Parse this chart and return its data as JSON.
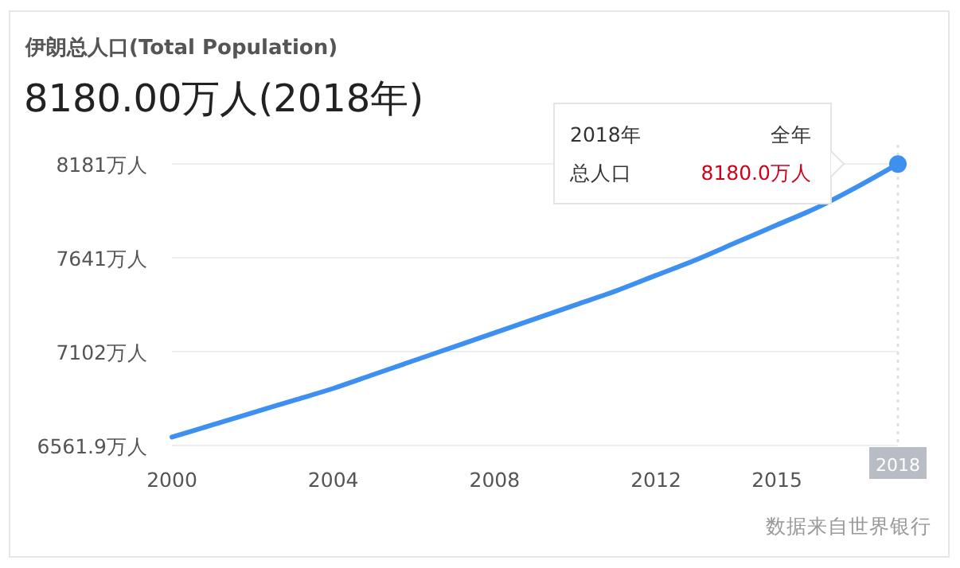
{
  "chart_data": {
    "type": "line",
    "title": "伊朗总人口(Total Population)",
    "subtitle": "8180.00万人(2018年)",
    "x": [
      2000,
      2001,
      2002,
      2003,
      2004,
      2005,
      2006,
      2007,
      2008,
      2009,
      2010,
      2011,
      2012,
      2013,
      2014,
      2015,
      2016,
      2017,
      2018
    ],
    "series": [
      {
        "color": "#3d8ff0",
        "marker": "none",
        "values": [
          6610,
          6680,
          6750,
          6820,
          6890,
          6970,
          7050,
          7130,
          7210,
          7290,
          7370,
          7450,
          7540,
          7630,
          7730,
          7830,
          7930,
          8050,
          8180
        ]
      },
      {
        "type": "scatter",
        "color": "#3d8ff0",
        "marker": "circle",
        "x": [
          2018
        ],
        "values": [
          8180
        ]
      }
    ],
    "xlim": [
      2000,
      2018
    ],
    "xticks": [
      2000,
      2004,
      2008,
      2012,
      2015
    ],
    "ylim": [
      6561.9,
      8181
    ],
    "yticks": [
      {
        "value": 6561.9,
        "label": "6561.9万人"
      },
      {
        "value": 7102,
        "label": "7102万人"
      },
      {
        "value": 7641,
        "label": "7641万人"
      },
      {
        "value": 8181,
        "label": "8181万人"
      }
    ],
    "grid": "y",
    "ref_lines": [
      {
        "axis": "x",
        "value": 2018,
        "label": "2018",
        "color": "#dde1e6",
        "line_style": "dotted"
      }
    ],
    "annotations": [
      "2018年",
      "全年",
      "总人口",
      "8180.0万人",
      "数据来自世界银行"
    ]
  }
}
